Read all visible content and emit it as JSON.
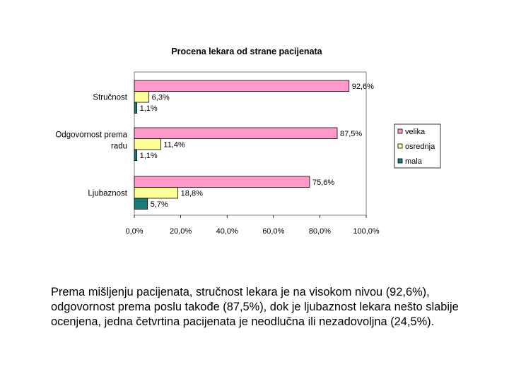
{
  "chart_data": {
    "type": "bar",
    "orientation": "horizontal",
    "title": "Procena lekara od strane pacijenata",
    "categories": [
      "Stručnost",
      "Odgovornost prema radu",
      "Ljubaznost"
    ],
    "category_label_lines": [
      [
        "Stručnost"
      ],
      [
        "Odgovornost prema",
        "radu"
      ],
      [
        "Ljubaznost"
      ]
    ],
    "series": [
      {
        "name": "velika",
        "color": "#ff99cc",
        "values": [
          92.6,
          87.5,
          75.6
        ],
        "labels": [
          "92,6%",
          "87,5%",
          "75,6%"
        ]
      },
      {
        "name": "osrednja",
        "color": "#ffff99",
        "values": [
          6.3,
          11.4,
          18.8
        ],
        "labels": [
          "6,3%",
          "11,4%",
          "18,8%"
        ]
      },
      {
        "name": "mala",
        "color": "#1a7a7a",
        "values": [
          1.1,
          1.1,
          5.7
        ],
        "labels": [
          "1,1%",
          "1,1%",
          "5,7%"
        ]
      }
    ],
    "xlim": [
      0,
      100
    ],
    "x_ticks": [
      0,
      20,
      40,
      60,
      80,
      100
    ],
    "x_tick_labels": [
      "0,0%",
      "20,0%",
      "40,0%",
      "60,0%",
      "80,0%",
      "100,0%"
    ],
    "grid": false,
    "legend_position": "right"
  },
  "caption": "Prema mišljenju pacijenata, stručnost lekara je na visokom nivou (92,6%), odgovornost prema poslu takođe (87,5%), dok je ljubaznost lekara nešto slabije ocenjena, jedna četvrtina pacijenata je neodlučna ili nezadovoljna (24,5%)."
}
